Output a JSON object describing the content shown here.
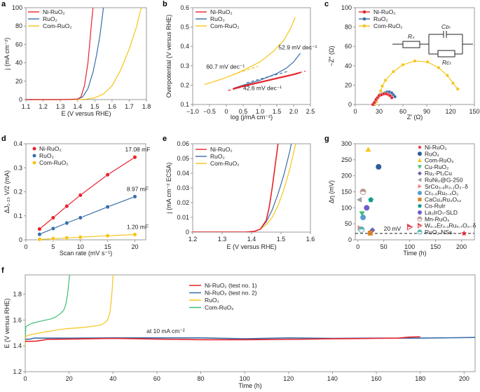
{
  "colors": {
    "red": "#e8232b",
    "blue": "#3a6ea8",
    "yellow": "#f5c518",
    "green": "#3cbf73",
    "axis": "#999999"
  },
  "chart_data": [
    {
      "id": "a",
      "panel_label": "a",
      "type": "line",
      "xlabel": "E (V versus RHE)",
      "ylabel": "j (mA cm⁻²)",
      "xlim": [
        1.1,
        1.8
      ],
      "ylim": [
        0,
        100
      ],
      "xticks": [
        "1.1",
        "1.2",
        "1.3",
        "1.4",
        "1.5",
        "1.6",
        "1.7",
        "1.8"
      ],
      "yticks": [
        "0",
        "20",
        "40",
        "60",
        "80",
        "100"
      ],
      "legend": "top-left",
      "series": [
        {
          "name": "Ni-RuO₂",
          "color": "red",
          "x": [
            1.1,
            1.3,
            1.4,
            1.42,
            1.44,
            1.46,
            1.47,
            1.48,
            1.49
          ],
          "y": [
            0,
            0,
            0.5,
            3,
            15,
            40,
            60,
            82,
            100
          ]
        },
        {
          "name": "RuO₂",
          "color": "blue",
          "x": [
            1.1,
            1.3,
            1.4,
            1.43,
            1.46,
            1.49,
            1.51,
            1.53,
            1.55
          ],
          "y": [
            0,
            0,
            0.5,
            3,
            12,
            30,
            48,
            70,
            100
          ]
        },
        {
          "name": "Com-RuO₂",
          "color": "yellow",
          "x": [
            1.1,
            1.4,
            1.45,
            1.5,
            1.55,
            1.6,
            1.65,
            1.7,
            1.74,
            1.77
          ],
          "y": [
            0,
            0,
            0.5,
            2,
            6,
            15,
            32,
            55,
            78,
            100
          ]
        }
      ]
    },
    {
      "id": "b",
      "panel_label": "b",
      "type": "line",
      "xlabel": "log (j/mA cm⁻²)",
      "ylabel": "Overpotential (V versus RHE)",
      "xlim": [
        -1.0,
        2.5
      ],
      "ylim": [
        0.1,
        0.6
      ],
      "xticks": [
        "−1.0",
        "−0.5",
        "0",
        "0.5",
        "1.0",
        "1.5",
        "2.0",
        "2.5"
      ],
      "yticks": [
        "0.1",
        "0.2",
        "0.3",
        "0.4",
        "0.5",
        "0.6"
      ],
      "legend": "top-left",
      "series": [
        {
          "name": "Ni-RuO₂",
          "color": "red",
          "x": [
            0.2,
            0.5,
            1.0,
            1.5,
            2.0,
            2.2
          ],
          "y": [
            0.18,
            0.195,
            0.215,
            0.235,
            0.255,
            0.265
          ]
        },
        {
          "name": "RuO₂",
          "color": "blue",
          "x": [
            0.2,
            0.5,
            1.0,
            1.5,
            1.8,
            2.0,
            2.2
          ],
          "y": [
            0.183,
            0.2,
            0.225,
            0.26,
            0.29,
            0.32,
            0.365
          ]
        },
        {
          "name": "Com-RuO₂",
          "color": "yellow",
          "x": [
            -0.65,
            -0.3,
            0,
            0.3,
            0.6,
            1.0,
            1.4,
            1.7,
            1.9,
            2.05
          ],
          "y": [
            0.203,
            0.222,
            0.24,
            0.26,
            0.285,
            0.32,
            0.375,
            0.43,
            0.49,
            0.55
          ]
        }
      ],
      "fits": [
        {
          "color": "red",
          "x": [
            0.05,
            2.35
          ],
          "y": [
            0.172,
            0.272
          ]
        },
        {
          "color": "blue",
          "x": [
            0.6,
            1.85
          ],
          "y": [
            0.212,
            0.272
          ]
        },
        {
          "color": "yellow",
          "x": [
            0.2,
            0.95
          ],
          "y": [
            0.255,
            0.297
          ]
        }
      ],
      "annotations": [
        {
          "text": "52.9 mV dec⁻¹",
          "x": 1.55,
          "y": 0.385
        },
        {
          "text": "60.7 mV dec⁻¹",
          "x": -0.6,
          "y": 0.285
        },
        {
          "text": "42.6 mV dec⁻¹",
          "x": 0.5,
          "y": 0.175
        }
      ]
    },
    {
      "id": "c",
      "panel_label": "c",
      "type": "scatter",
      "xlabel": "Z′ (Ω)",
      "ylabel": "−Z″ (Ω)",
      "xlim": [
        0,
        150
      ],
      "ylim": [
        0,
        100
      ],
      "xticks": [
        "0",
        "30",
        "60",
        "90",
        "120",
        "150"
      ],
      "yticks": [
        "0",
        "20",
        "40",
        "60",
        "80",
        "100"
      ],
      "legend": "top-left",
      "series": [
        {
          "name": "Ni-RuO₂",
          "color": "red",
          "x": [
            22,
            24,
            26,
            28,
            30,
            33,
            36,
            39,
            42,
            44,
            46
          ],
          "y": [
            0,
            2,
            5,
            7,
            9,
            10,
            11,
            11,
            10,
            9,
            7
          ]
        },
        {
          "name": "RuO₂",
          "color": "blue",
          "x": [
            23,
            25,
            27,
            29,
            31,
            34,
            37,
            40,
            43,
            46,
            48,
            50
          ],
          "y": [
            0,
            3,
            6,
            8,
            10,
            11,
            12,
            13,
            13,
            12,
            10,
            8
          ]
        },
        {
          "name": "Com-RuO₂",
          "color": "yellow",
          "x": [
            25,
            27,
            28,
            30,
            32,
            34,
            38,
            48,
            60,
            75,
            91,
            105,
            116,
            123,
            129
          ],
          "y": [
            0,
            3,
            6,
            10,
            14,
            19,
            25,
            34,
            41,
            45,
            44,
            38,
            30,
            22,
            16
          ]
        }
      ],
      "circuit": {
        "labels": [
          "Rₛ",
          "Cᴅₗ",
          "Rᴄₜ"
        ]
      }
    },
    {
      "id": "d",
      "panel_label": "d",
      "type": "scatter",
      "xlabel": "Scan rate (mV s⁻¹)",
      "ylabel": "ΔJ₁.₂₃ V/2 (mA)",
      "xlim": [
        0,
        22
      ],
      "ylim": [
        0,
        0.4
      ],
      "xticks": [
        "0",
        "5",
        "10",
        "15",
        "20"
      ],
      "xtick_values": [
        0,
        5,
        10,
        15,
        20
      ],
      "yticks": [
        "0",
        "0.1",
        "0.2",
        "0.3",
        "0.4"
      ],
      "legend": "top-left",
      "series": [
        {
          "name": "Ni-RuO₂",
          "color": "red",
          "x": [
            2.5,
            5,
            7.5,
            10,
            15,
            20
          ],
          "y": [
            0.045,
            0.092,
            0.14,
            0.186,
            0.271,
            0.344
          ],
          "label": "17.08 mF"
        },
        {
          "name": "RuO₂",
          "color": "blue",
          "x": [
            2.5,
            5,
            7.5,
            10,
            15,
            20
          ],
          "y": [
            0.023,
            0.047,
            0.07,
            0.092,
            0.137,
            0.18
          ],
          "label": "8.97 mF"
        },
        {
          "name": "Com-RuO₂",
          "color": "yellow",
          "x": [
            2.5,
            5,
            7.5,
            10,
            15,
            20
          ],
          "y": [
            0.002,
            0.005,
            0.008,
            0.011,
            0.017,
            0.022
          ],
          "label": "1.20 mF"
        }
      ]
    },
    {
      "id": "e",
      "panel_label": "e",
      "type": "line",
      "xlabel": "E (V versus RHE)",
      "ylabel": "j (mA cm⁻² ECSA)",
      "xlim": [
        1.2,
        1.6
      ],
      "ylim": [
        0,
        0.06
      ],
      "xticks": [
        "1.2",
        "1.3",
        "1.4",
        "1.5",
        "1.6"
      ],
      "yticks": [
        "0",
        "0.01",
        "0.02",
        "0.03",
        "0.04",
        "0.05",
        "0.06"
      ],
      "legend": "top-left",
      "series": [
        {
          "name": "Ni-RuO₂",
          "color": "red",
          "x": [
            1.2,
            1.38,
            1.41,
            1.43,
            1.45,
            1.46,
            1.47,
            1.48,
            1.49
          ],
          "y": [
            0,
            0,
            0.0005,
            0.002,
            0.008,
            0.017,
            0.03,
            0.045,
            0.06
          ]
        },
        {
          "name": "RuO₂",
          "color": "blue",
          "x": [
            1.2,
            1.38,
            1.41,
            1.43,
            1.45,
            1.47,
            1.49,
            1.51,
            1.53,
            1.535
          ],
          "y": [
            0,
            0,
            0.0005,
            0.002,
            0.007,
            0.015,
            0.026,
            0.039,
            0.055,
            0.06
          ]
        },
        {
          "name": "Com-RuO₂",
          "color": "yellow",
          "x": [
            1.2,
            1.38,
            1.41,
            1.43,
            1.45,
            1.47,
            1.49,
            1.51,
            1.53,
            1.55
          ],
          "y": [
            0,
            0,
            0.0005,
            0.002,
            0.005,
            0.01,
            0.018,
            0.029,
            0.043,
            0.06
          ]
        }
      ]
    },
    {
      "id": "f",
      "panel_label": "f",
      "type": "line",
      "xlabel": "Time (h)",
      "ylabel": "E (V versus RHE)",
      "xlim": [
        0,
        205
      ],
      "ylim": [
        1.2,
        1.95
      ],
      "xticks": [
        "0",
        "20",
        "40",
        "60",
        "80",
        "100",
        "120",
        "140",
        "160",
        "180",
        "200"
      ],
      "xtick_values": [
        0,
        20,
        40,
        60,
        80,
        100,
        120,
        140,
        160,
        180,
        200
      ],
      "yticks": [
        "1.2",
        "1.4",
        "1.6",
        "1.8"
      ],
      "ytick_values": [
        1.2,
        1.4,
        1.6,
        1.8
      ],
      "legend": "top-right",
      "annotation": "at 10 mA cm⁻²",
      "series": [
        {
          "name": "Ni-RuO₂ (test no. 1)",
          "color": "red",
          "x": [
            0,
            5,
            10,
            20,
            40,
            60,
            80,
            100,
            120,
            140,
            160,
            170,
            175,
            180
          ],
          "y": [
            1.435,
            1.437,
            1.45,
            1.452,
            1.458,
            1.452,
            1.448,
            1.448,
            1.45,
            1.455,
            1.458,
            1.46,
            1.468,
            1.47
          ]
        },
        {
          "name": "Ni-RuO₂ (test no. 2)",
          "color": "blue",
          "x": [
            0,
            2,
            4,
            20,
            40,
            60,
            80,
            100,
            120,
            140,
            160,
            180,
            205
          ],
          "y": [
            1.45,
            1.452,
            1.46,
            1.46,
            1.462,
            1.462,
            1.462,
            1.455,
            1.462,
            1.458,
            1.46,
            1.46,
            1.465
          ]
        },
        {
          "name": "RuO₂",
          "color": "yellow",
          "x": [
            0,
            0.3,
            2,
            5,
            10,
            15,
            20,
            25,
            30,
            34,
            36,
            37.5,
            38.5,
            39.2,
            39.7,
            40
          ],
          "y": [
            1.4,
            1.475,
            1.485,
            1.495,
            1.51,
            1.525,
            1.535,
            1.54,
            1.55,
            1.56,
            1.575,
            1.6,
            1.65,
            1.75,
            1.85,
            1.95
          ]
        },
        {
          "name": "Com-RuO₂",
          "color": "green",
          "x": [
            0,
            0.3,
            3,
            8,
            12,
            14,
            16,
            17.5,
            18.5,
            19.3,
            19.8,
            20.2
          ],
          "y": [
            1.45,
            1.55,
            1.575,
            1.595,
            1.61,
            1.625,
            1.65,
            1.675,
            1.72,
            1.8,
            1.88,
            1.95
          ]
        }
      ]
    },
    {
      "id": "g",
      "panel_label": "g",
      "type": "scatter",
      "xlabel": "Time (h)",
      "ylabel": "Δη (mV)",
      "xlim": [
        -5,
        225
      ],
      "ylim": [
        0,
        300
      ],
      "xticks": [
        "0",
        "50",
        "100",
        "150",
        "200"
      ],
      "xtick_values": [
        0,
        50,
        100,
        150,
        200
      ],
      "yticks": [
        "0",
        "50",
        "100",
        "150",
        "200",
        "250",
        "300"
      ],
      "ytick_values": [
        0,
        50,
        100,
        150,
        200,
        250,
        300
      ],
      "reference_line": {
        "y": 20,
        "label": "20 mV"
      },
      "legend": "right",
      "series": [
        {
          "name": "Ni-RuO₂",
          "marker": "star",
          "color": "#e8232b",
          "x": 205,
          "y": 20
        },
        {
          "name": "RuO₂",
          "marker": "circle",
          "color": "#2e5d9a",
          "x": 40,
          "y": 228
        },
        {
          "name": "Com-RuO₂",
          "marker": "triangle-up",
          "color": "#f5c518",
          "x": 20,
          "y": 282
        },
        {
          "name": "Cu-RuO₂",
          "marker": "triangle-down",
          "color": "#3cbf73",
          "x": 8,
          "y": 82
        },
        {
          "name": "Ru₁-Pt₃Cu",
          "marker": "diamond",
          "color": "#6a62b0",
          "x": 28,
          "y": 30
        },
        {
          "name": "RuNi₂@G-250",
          "marker": "triangle-left",
          "color": "#a0a0a0",
          "x": 3,
          "y": 125
        },
        {
          "name": "SrCo₀.₉Ir₀.₁O₃₋δ",
          "marker": "triangle-right",
          "color": "#f08080",
          "x": 4,
          "y": 37
        },
        {
          "name": "Cr₀.₆Ru₀.₄O₂",
          "marker": "circle",
          "color": "#5b9bd5",
          "x": 10,
          "y": 70
        },
        {
          "name": "CaCu₃Ru₄O₁₂",
          "marker": "square",
          "color": "#d9822b",
          "x": 24,
          "y": 21
        },
        {
          "name": "Co-RuIr",
          "marker": "pentagon",
          "color": "#169c8e",
          "x": 25,
          "y": 125
        },
        {
          "name": "La₃IrO₇-SLD",
          "marker": "circle",
          "color": "#6d5fc9",
          "x": 17,
          "y": 100
        },
        {
          "name": "Mn-RuO₂",
          "marker": "half-circle",
          "color": "#b8968a",
          "x": 10,
          "y": 150
        },
        {
          "name": "W₀.₂Er₀.₁Ru₀.₇O₂₋δ",
          "marker": "flag",
          "color": "#e04050",
          "x": 100,
          "y": 40
        },
        {
          "name": "RuO₂ NSs",
          "marker": "half-circle",
          "color": "#5fb3b3",
          "x": 7,
          "y": 32
        }
      ]
    }
  ]
}
